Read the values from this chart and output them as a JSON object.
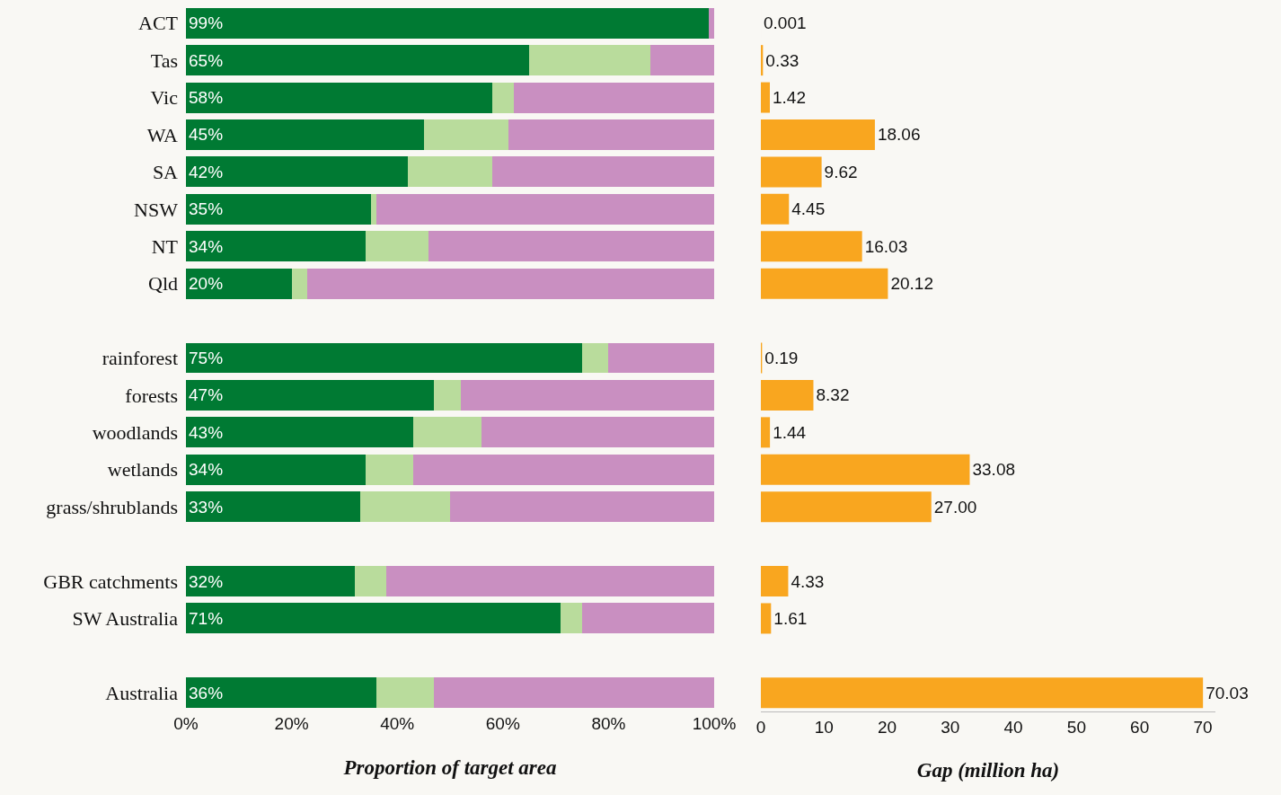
{
  "chart_data": [
    {
      "type": "bar",
      "orientation": "horizontal",
      "stacked": true,
      "categories": [
        "ACT",
        "Tas",
        "Vic",
        "WA",
        "SA",
        "NSW",
        "NT",
        "Qld",
        null,
        "rainforest",
        "forests",
        "woodlands",
        "wetlands",
        "grass/shrublands",
        null,
        "GBR catchments",
        "SW Australia",
        null,
        "Australia"
      ],
      "series": [
        {
          "color": "#007a33",
          "values": [
            99,
            65,
            58,
            45,
            42,
            35,
            34,
            20,
            null,
            75,
            47,
            43,
            34,
            33,
            null,
            32,
            71,
            null,
            36
          ],
          "value_labels": [
            "99%",
            "65%",
            "58%",
            "45%",
            "42%",
            "35%",
            "34%",
            "20%",
            null,
            "75%",
            "47%",
            "43%",
            "34%",
            "33%",
            null,
            "32%",
            "71%",
            null,
            "36%"
          ]
        },
        {
          "color": "#b9dc9c",
          "values": [
            0,
            23,
            4,
            16,
            16,
            1,
            12,
            3,
            null,
            5,
            5,
            13,
            9,
            17,
            null,
            6,
            4,
            null,
            11
          ]
        },
        {
          "color": "#c98fc1",
          "values": [
            1,
            12,
            38,
            39,
            42,
            64,
            54,
            77,
            null,
            20,
            48,
            44,
            57,
            50,
            null,
            62,
            25,
            null,
            53
          ]
        }
      ],
      "xlim": [
        0,
        100
      ],
      "xticks": [
        {
          "value": 0,
          "label": "0%"
        },
        {
          "value": 20,
          "label": "20%"
        },
        {
          "value": 40,
          "label": "40%"
        },
        {
          "value": 60,
          "label": "60%"
        },
        {
          "value": 80,
          "label": "80%"
        },
        {
          "value": 100,
          "label": "100%"
        }
      ],
      "xlabel": "Proportion of target area",
      "grid": false
    },
    {
      "type": "bar",
      "orientation": "horizontal",
      "categories": [
        null,
        null,
        null,
        null,
        null,
        null,
        null,
        null,
        null,
        null,
        null,
        null,
        null,
        null,
        null,
        null,
        null,
        null,
        null
      ],
      "values": [
        0.001,
        0.33,
        1.42,
        18.06,
        9.62,
        4.45,
        16.03,
        20.12,
        null,
        0.19,
        8.32,
        1.44,
        33.08,
        27.0,
        null,
        4.33,
        1.61,
        null,
        70.03
      ],
      "value_labels": [
        "0.001",
        "0.33",
        "1.42",
        "18.06",
        "9.62",
        "4.45",
        "16.03",
        "20.12",
        null,
        "0.19",
        "8.32",
        "1.44",
        "33.08",
        "27.00",
        null,
        "4.33",
        "1.61",
        null,
        "70.03"
      ],
      "color": "#f9a61f",
      "xlim": [
        0,
        72
      ],
      "xticks": [
        0,
        10,
        20,
        30,
        40,
        50,
        60,
        70
      ],
      "xlabel": "Gap (million ha)",
      "grid": false
    }
  ]
}
